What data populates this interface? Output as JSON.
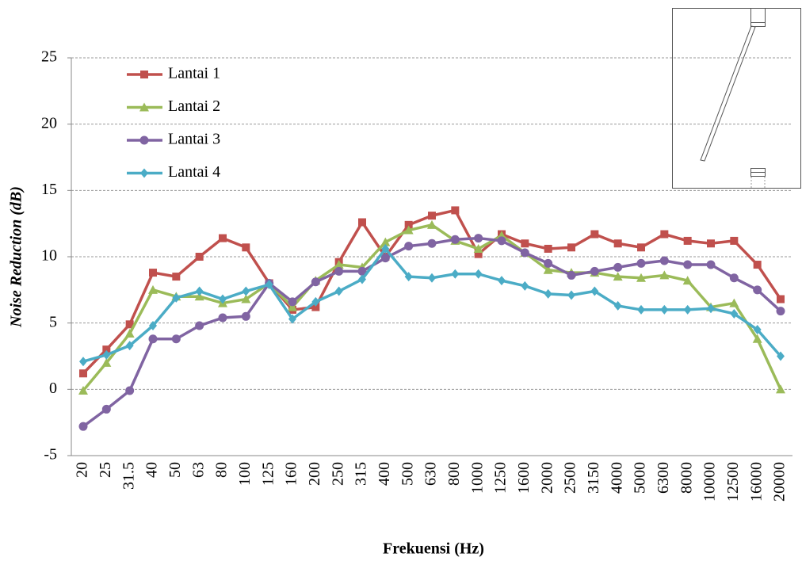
{
  "chart_data": {
    "type": "line",
    "x_label": "Frekuensi (Hz)",
    "y_label": "Noise Reduction (dB)",
    "categories": [
      "20",
      "25",
      "31.5",
      "40",
      "50",
      "63",
      "80",
      "100",
      "125",
      "160",
      "200",
      "250",
      "315",
      "400",
      "500",
      "630",
      "800",
      "1000",
      "1250",
      "1600",
      "2000",
      "2500",
      "3150",
      "4000",
      "5000",
      "6300",
      "8000",
      "10000",
      "12500",
      "16000",
      "20000"
    ],
    "ylim": [
      -5,
      25
    ],
    "yticks": [
      -5,
      0,
      5,
      10,
      15,
      20,
      25
    ],
    "grid": true,
    "legend": "upper left",
    "series": [
      {
        "name": "Lantai 1",
        "color": "#c0504d",
        "marker": "square",
        "values": [
          1.2,
          3.0,
          4.9,
          8.8,
          8.5,
          10.0,
          11.4,
          10.7,
          8.0,
          6.0,
          6.2,
          9.6,
          12.6,
          10.0,
          12.4,
          13.1,
          13.5,
          10.2,
          11.7,
          11.0,
          10.6,
          10.7,
          11.7,
          11.0,
          10.7,
          11.7,
          11.2,
          11.0,
          11.2,
          9.4,
          6.8
        ]
      },
      {
        "name": "Lantai 2",
        "color": "#9bbb59",
        "marker": "triangle",
        "values": [
          -0.1,
          2.0,
          4.2,
          7.5,
          7.0,
          7.0,
          6.5,
          6.8,
          8.0,
          6.2,
          8.2,
          9.4,
          9.2,
          11.1,
          12.0,
          12.4,
          11.2,
          10.6,
          11.6,
          10.3,
          9.0,
          8.8,
          8.8,
          8.5,
          8.4,
          8.6,
          8.2,
          6.2,
          6.5,
          3.8,
          0.0
        ]
      },
      {
        "name": "Lantai 3",
        "color": "#8064a2",
        "marker": "circle",
        "values": [
          -2.8,
          -1.5,
          -0.1,
          3.8,
          3.8,
          4.8,
          5.4,
          5.5,
          8.0,
          6.6,
          8.1,
          8.9,
          8.9,
          9.9,
          10.8,
          11.0,
          11.3,
          11.4,
          11.2,
          10.3,
          9.5,
          8.6,
          8.9,
          9.2,
          9.5,
          9.7,
          9.4,
          9.4,
          8.4,
          7.5,
          5.9
        ]
      },
      {
        "name": "Lantai 4",
        "color": "#4bacc6",
        "marker": "diamond",
        "values": [
          2.1,
          2.6,
          3.3,
          4.8,
          6.9,
          7.4,
          6.8,
          7.4,
          7.9,
          5.3,
          6.6,
          7.4,
          8.3,
          10.6,
          8.5,
          8.4,
          8.7,
          8.7,
          8.2,
          7.8,
          7.2,
          7.1,
          7.4,
          6.3,
          6.0,
          6.0,
          6.0,
          6.1,
          5.7,
          4.5,
          2.5
        ]
      }
    ]
  }
}
